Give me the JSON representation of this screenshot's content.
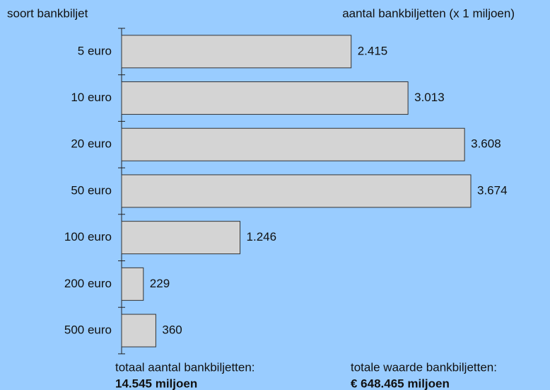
{
  "chart_data": {
    "type": "bar",
    "orientation": "horizontal",
    "y_label": "soort bankbiljet",
    "x_label": "aantal bankbiljetten (x 1 miljoen)",
    "categories": [
      "5 euro",
      "10 euro",
      "20 euro",
      "50 euro",
      "100 euro",
      "200 euro",
      "500 euro"
    ],
    "values": [
      2415,
      3013,
      3608,
      3674,
      1246,
      229,
      360
    ],
    "value_labels": [
      "2.415",
      "3.013",
      "3.608",
      "3.674",
      "1.246",
      "229",
      "360"
    ],
    "color": "#d4d4d4",
    "annotations": [
      "totaal aantal bankbiljetten:",
      "14.545 miljoen",
      "totale waarde bankbiljetten:",
      "€ 648.465 miljoen"
    ]
  }
}
